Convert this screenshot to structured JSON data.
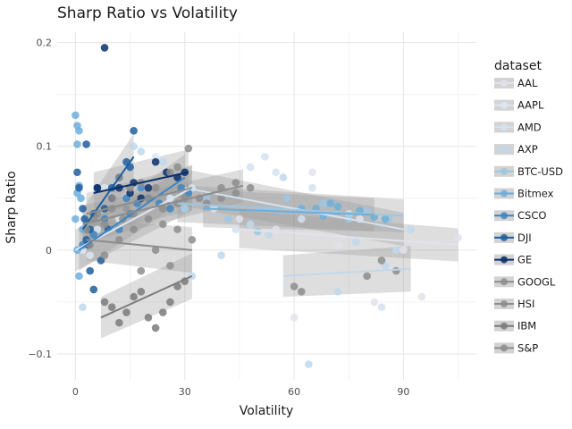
{
  "chart_data": {
    "type": "scatter",
    "title": "Sharp Ratio vs Volatility",
    "xlabel": "Volatility",
    "ylabel": "Sharp Ratio",
    "xlim": [
      -5,
      110
    ],
    "ylim": [
      -0.125,
      0.21
    ],
    "x_ticks": [
      0,
      30,
      60,
      90
    ],
    "y_ticks": [
      -0.1,
      0,
      0.1,
      0.2
    ],
    "x_tick_labels": [
      "0",
      "30",
      "60",
      "90"
    ],
    "y_tick_labels": [
      "−0.1",
      "0",
      "0.1",
      "0.2"
    ],
    "grid": true,
    "legend_title": "dataset",
    "legend_position": "right",
    "series": [
      {
        "name": "AAL",
        "color": "#e2e2ec",
        "trend": [
          [
            45,
            0.02
          ],
          [
            105,
            0.005
          ]
        ],
        "points": [
          [
            45,
            0.03
          ],
          [
            55,
            0.02
          ],
          [
            65,
            0.075
          ],
          [
            72,
            0.005
          ],
          [
            82,
            -0.05
          ],
          [
            90,
            0.0
          ],
          [
            95,
            -0.045
          ],
          [
            105,
            0.012
          ],
          [
            60,
            -0.065
          ],
          [
            78,
            0.03
          ]
        ]
      },
      {
        "name": "AAPL",
        "color": "#dde6f2",
        "trend": [
          [
            0,
            0.0
          ],
          [
            32,
            0.06
          ]
        ],
        "points": [
          [
            2,
            0.0
          ],
          [
            4,
            -0.005
          ],
          [
            6,
            0.02
          ],
          [
            10,
            0.05
          ],
          [
            14,
            0.04
          ],
          [
            18,
            0.06
          ],
          [
            22,
            0.09
          ],
          [
            26,
            0.05
          ],
          [
            30,
            0.04
          ],
          [
            8,
            0.06
          ],
          [
            12,
            0.03
          ]
        ]
      },
      {
        "name": "AMD",
        "color": "#d3e2f0",
        "trend": [
          [
            30,
            0.06
          ],
          [
            90,
            0.02
          ]
        ],
        "points": [
          [
            32,
            0.06
          ],
          [
            38,
            0.04
          ],
          [
            44,
            0.02
          ],
          [
            48,
            0.08
          ],
          [
            52,
            0.09
          ],
          [
            55,
            0.075
          ],
          [
            65,
            0.06
          ],
          [
            75,
            0.035
          ],
          [
            84,
            -0.055
          ],
          [
            62,
            0.03
          ]
        ]
      },
      {
        "name": "AXP",
        "color": "#c0d8ec",
        "trend": [
          [
            57,
            -0.025
          ],
          [
            92,
            -0.018
          ]
        ],
        "points": [
          [
            2,
            -0.055
          ],
          [
            16,
            0.1
          ],
          [
            18,
            0.095
          ],
          [
            24,
            0.085
          ],
          [
            32,
            -0.025
          ],
          [
            40,
            -0.005
          ],
          [
            48,
            0.025
          ],
          [
            53,
            0.015
          ],
          [
            57,
            0.07
          ],
          [
            64,
            -0.11
          ],
          [
            72,
            -0.04
          ],
          [
            77,
            0.008
          ],
          [
            85,
            -0.015
          ],
          [
            88,
            0.0
          ],
          [
            92,
            0.02
          ]
        ]
      },
      {
        "name": "BTC-USD",
        "color": "#9ec7e3",
        "trend": [
          [
            28,
            0.045
          ],
          [
            90,
            0.033
          ]
        ],
        "points": [
          [
            30,
            0.04
          ],
          [
            36,
            0.05
          ],
          [
            42,
            0.03
          ],
          [
            50,
            0.018
          ],
          [
            58,
            0.05
          ],
          [
            62,
            0.04
          ],
          [
            68,
            0.045
          ],
          [
            75,
            0.03
          ],
          [
            80,
            0.038
          ],
          [
            86,
            0.03
          ]
        ]
      },
      {
        "name": "Bitmex",
        "color": "#6daed9",
        "trend": [
          [
            35,
            0.04
          ],
          [
            82,
            0.034
          ]
        ],
        "points": [
          [
            0,
            0.13
          ],
          [
            0.5,
            0.12
          ],
          [
            1,
            0.115
          ],
          [
            0.5,
            0.102
          ],
          [
            1,
            0.062
          ],
          [
            0.5,
            0.055
          ],
          [
            1.5,
            0.05
          ],
          [
            0,
            0.03
          ],
          [
            2,
            0.02
          ],
          [
            0.5,
            0.0
          ],
          [
            1,
            -0.025
          ],
          [
            3,
            0.02
          ],
          [
            62,
            0.04
          ],
          [
            66,
            0.04
          ],
          [
            68,
            0.033
          ],
          [
            70,
            0.045
          ],
          [
            72,
            0.042
          ],
          [
            78,
            0.038
          ],
          [
            82,
            0.032
          ],
          [
            85,
            0.03
          ]
        ]
      },
      {
        "name": "CSCO",
        "color": "#3d85c2",
        "trend": [
          [
            1,
            0.0
          ],
          [
            30,
            0.07
          ]
        ],
        "points": [
          [
            2,
            0.005
          ],
          [
            5,
            0.015
          ],
          [
            8,
            0.03
          ],
          [
            12,
            0.02
          ],
          [
            15,
            0.035
          ],
          [
            17,
            0.045
          ],
          [
            20,
            0.05
          ],
          [
            23,
            0.045
          ],
          [
            26,
            0.04
          ],
          [
            29,
            0.06
          ],
          [
            31,
            0.055
          ],
          [
            18,
            0.06
          ],
          [
            14,
            0.05
          ]
        ]
      },
      {
        "name": "DJI",
        "color": "#1e5e9e",
        "trend": [
          [
            2,
            0.02
          ],
          [
            16,
            0.09
          ]
        ],
        "points": [
          [
            0.5,
            0.075
          ],
          [
            1,
            0.06
          ],
          [
            2,
            0.04
          ],
          [
            2.5,
            0.03
          ],
          [
            3,
            0.01
          ],
          [
            3.5,
            0.005
          ],
          [
            4,
            0.02
          ],
          [
            5,
            0.035
          ],
          [
            6,
            0.06
          ],
          [
            8,
            0.04
          ],
          [
            10,
            0.06
          ],
          [
            12,
            0.07
          ],
          [
            14,
            0.085
          ],
          [
            15,
            0.08
          ],
          [
            16,
            0.115
          ],
          [
            4,
            -0.02
          ],
          [
            5,
            -0.038
          ],
          [
            7,
            -0.01
          ],
          [
            9,
            0.02
          ],
          [
            3,
            0.102
          ]
        ]
      },
      {
        "name": "GE",
        "color": "#0b2f6b",
        "trend": [
          [
            5,
            0.055
          ],
          [
            31,
            0.075
          ]
        ],
        "points": [
          [
            8,
            0.195
          ],
          [
            12,
            0.06
          ],
          [
            15,
            0.055
          ],
          [
            18,
            0.05
          ],
          [
            20,
            0.06
          ],
          [
            22,
            0.085
          ],
          [
            25,
            0.075
          ],
          [
            28,
            0.07
          ],
          [
            30,
            0.075
          ],
          [
            10,
            0.05
          ],
          [
            6,
            0.06
          ],
          [
            16,
            0.065
          ]
        ]
      },
      {
        "name": "GOOGL",
        "color": "#8d8d8d",
        "trend": [
          [
            3,
            0.035
          ],
          [
            32,
            0.06
          ]
        ],
        "points": [
          [
            5,
            0.03
          ],
          [
            8,
            0.025
          ],
          [
            10,
            0.05
          ],
          [
            12,
            0.07
          ],
          [
            15,
            0.06
          ],
          [
            18,
            0.065
          ],
          [
            22,
            0.06
          ],
          [
            26,
            0.075
          ],
          [
            28,
            0.08
          ],
          [
            30,
            0.05
          ],
          [
            31,
            0.098
          ],
          [
            14,
            0.04
          ]
        ]
      },
      {
        "name": "HSI",
        "color": "#8d8d8d",
        "trend": [
          [
            3,
            0.01
          ],
          [
            32,
            0.0
          ]
        ],
        "points": [
          [
            4,
            0.005
          ],
          [
            8,
            -0.005
          ],
          [
            12,
            0.01
          ],
          [
            16,
            0.02
          ],
          [
            20,
            0.03
          ],
          [
            24,
            0.025
          ],
          [
            28,
            0.02
          ],
          [
            32,
            0.01
          ],
          [
            36,
            0.045
          ],
          [
            40,
            0.05
          ],
          [
            44,
            0.055
          ],
          [
            48,
            0.06
          ],
          [
            18,
            -0.02
          ],
          [
            26,
            -0.015
          ],
          [
            22,
            0.0
          ]
        ]
      },
      {
        "name": "IBM",
        "color": "#7b7b7b",
        "trend": [
          [
            7,
            -0.065
          ],
          [
            32,
            -0.025
          ]
        ],
        "points": [
          [
            8,
            -0.05
          ],
          [
            10,
            -0.055
          ],
          [
            14,
            -0.06
          ],
          [
            18,
            -0.04
          ],
          [
            20,
            -0.065
          ],
          [
            22,
            -0.075
          ],
          [
            24,
            -0.06
          ],
          [
            26,
            -0.05
          ],
          [
            28,
            -0.035
          ],
          [
            30,
            -0.03
          ],
          [
            16,
            -0.045
          ],
          [
            12,
            -0.07
          ]
        ]
      },
      {
        "name": "S&P",
        "color": "#8d8d8d",
        "trend": [
          [
            2,
            0.025
          ],
          [
            46,
            0.062
          ]
        ],
        "points": [
          [
            3,
            0.02
          ],
          [
            6,
            0.035
          ],
          [
            10,
            0.04
          ],
          [
            13,
            0.03
          ],
          [
            16,
            0.035
          ],
          [
            20,
            0.05
          ],
          [
            24,
            0.04
          ],
          [
            28,
            0.045
          ],
          [
            34,
            0.05
          ],
          [
            40,
            0.06
          ],
          [
            44,
            0.065
          ],
          [
            60,
            -0.035
          ],
          [
            62,
            -0.04
          ],
          [
            80,
            -0.025
          ],
          [
            84,
            -0.01
          ],
          [
            88,
            -0.02
          ]
        ]
      }
    ]
  }
}
